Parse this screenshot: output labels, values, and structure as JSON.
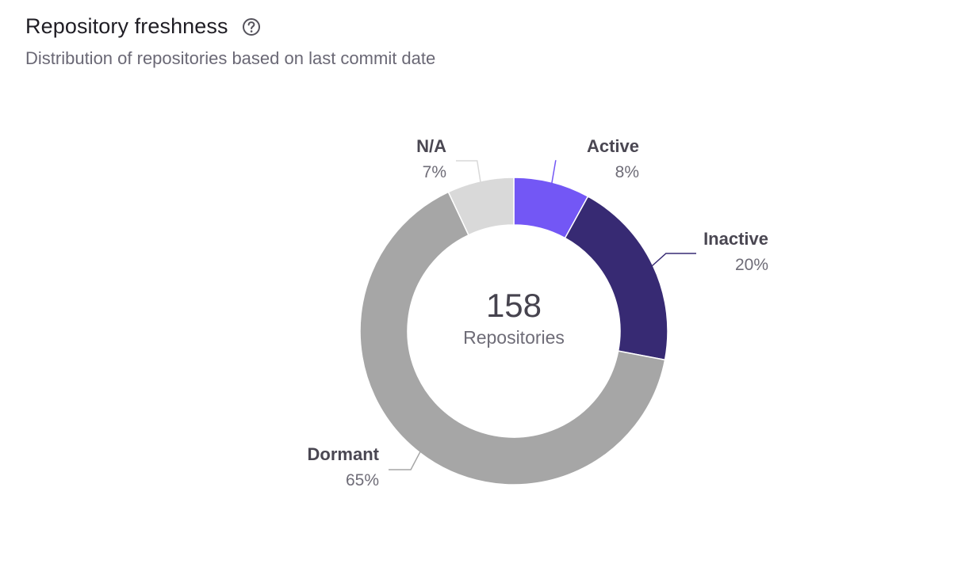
{
  "header": {
    "title": "Repository freshness",
    "subtitle": "Distribution of repositories based on last commit date",
    "help_icon": "help-circle-icon"
  },
  "chart_data": {
    "type": "pie",
    "variant": "donut",
    "title": "Repository freshness",
    "subtitle": "Distribution of repositories based on last commit date",
    "center_total": "158",
    "center_caption": "Repositories",
    "slices": [
      {
        "label": "Active",
        "value": 8,
        "value_label": "8%",
        "color": "#7357f5"
      },
      {
        "label": "Inactive",
        "value": 20,
        "value_label": "20%",
        "color": "#372a73"
      },
      {
        "label": "Dormant",
        "value": 65,
        "value_label": "65%",
        "color": "#a6a6a6"
      },
      {
        "label": "N/A",
        "value": 7,
        "value_label": "7%",
        "color": "#d9d9d9"
      }
    ],
    "legend": "none"
  }
}
